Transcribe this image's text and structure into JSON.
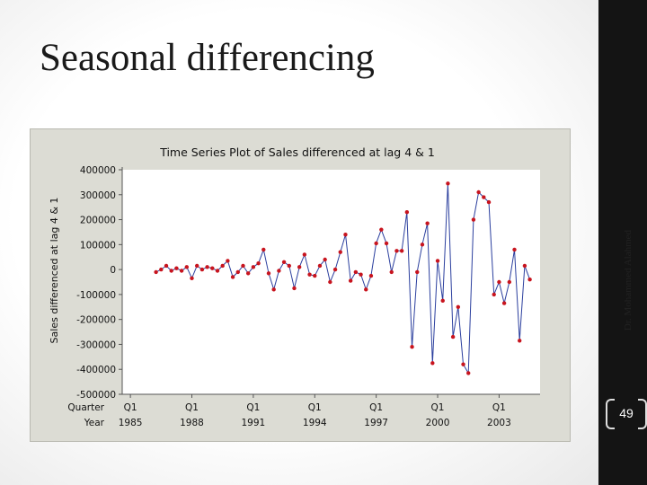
{
  "slide": {
    "title": "Seasonal differencing",
    "author": "Dr. Mohammed Alahmed",
    "page_number": "49"
  },
  "chart_data": {
    "type": "line",
    "title": "Time Series Plot of Sales differenced at lag 4 & 1",
    "ylabel": "Sales differenced at lag 4 & 1",
    "ylim": [
      -500000,
      400000
    ],
    "yticks": [
      400000,
      300000,
      200000,
      100000,
      0,
      -100000,
      -200000,
      -300000,
      -400000,
      -500000
    ],
    "ytick_labels": [
      "400000",
      "300000",
      "200000",
      "100000",
      "0",
      "-100000",
      "-200000",
      "-300000",
      "-400000",
      "-500000"
    ],
    "x_axis_rows": [
      {
        "label": "Quarter",
        "values": [
          "Q1",
          "Q1",
          "Q1",
          "Q1",
          "Q1",
          "Q1",
          "Q1"
        ]
      },
      {
        "label": "Year",
        "values": [
          "1985",
          "1988",
          "1991",
          "1994",
          "1997",
          "2000",
          "2003"
        ]
      }
    ],
    "x_ticks": [
      1985,
      1988,
      1991,
      1994,
      1997,
      2000,
      2003
    ],
    "grid": false,
    "line_color": "#2b3f9e",
    "marker_color": "#c8141e",
    "series": [
      {
        "x": [
          1986.25,
          1986.5,
          1986.75,
          1987,
          1987.25,
          1987.5,
          1987.75,
          1988,
          1988.25,
          1988.5,
          1988.75,
          1989,
          1989.25,
          1989.5,
          1989.75,
          1990,
          1990.25,
          1990.5,
          1990.75,
          1991,
          1991.25,
          1991.5,
          1991.75,
          1992,
          1992.25,
          1992.5,
          1992.75,
          1993,
          1993.25,
          1993.5,
          1993.75,
          1994,
          1994.25,
          1994.5,
          1994.75,
          1995,
          1995.25,
          1995.5,
          1995.75,
          1996,
          1996.25,
          1996.5,
          1996.75,
          1997,
          1997.25,
          1997.5,
          1997.75,
          1998,
          1998.25,
          1998.5,
          1998.75,
          1999,
          1999.25,
          1999.5,
          1999.75,
          2000,
          2000.25,
          2000.5,
          2000.75,
          2001,
          2001.25,
          2001.5,
          2001.75,
          2002,
          2002.25,
          2002.5,
          2002.75,
          2003,
          2003.25,
          2003.5,
          2003.75,
          2004,
          2004.25,
          2004.5
        ],
        "y": [
          -10000,
          0,
          15000,
          -5000,
          5000,
          -5000,
          10000,
          -35000,
          15000,
          0,
          10000,
          5000,
          -5000,
          15000,
          35000,
          -30000,
          -10000,
          15000,
          -15000,
          10000,
          25000,
          80000,
          -15000,
          -80000,
          -5000,
          30000,
          15000,
          -75000,
          10000,
          60000,
          -20000,
          -25000,
          15000,
          40000,
          -50000,
          0,
          70000,
          140000,
          -45000,
          -10000,
          -20000,
          -80000,
          -25000,
          105000,
          160000,
          105000,
          -10000,
          75000,
          75000,
          230000,
          -310000,
          -10000,
          100000,
          185000,
          -375000,
          35000,
          -125000,
          345000,
          -270000,
          -150000,
          -380000,
          -415000,
          200000,
          310000,
          290000,
          270000,
          -100000,
          -50000,
          -135000,
          -50000,
          80000,
          -285000,
          15000,
          -40000
        ]
      }
    ]
  }
}
